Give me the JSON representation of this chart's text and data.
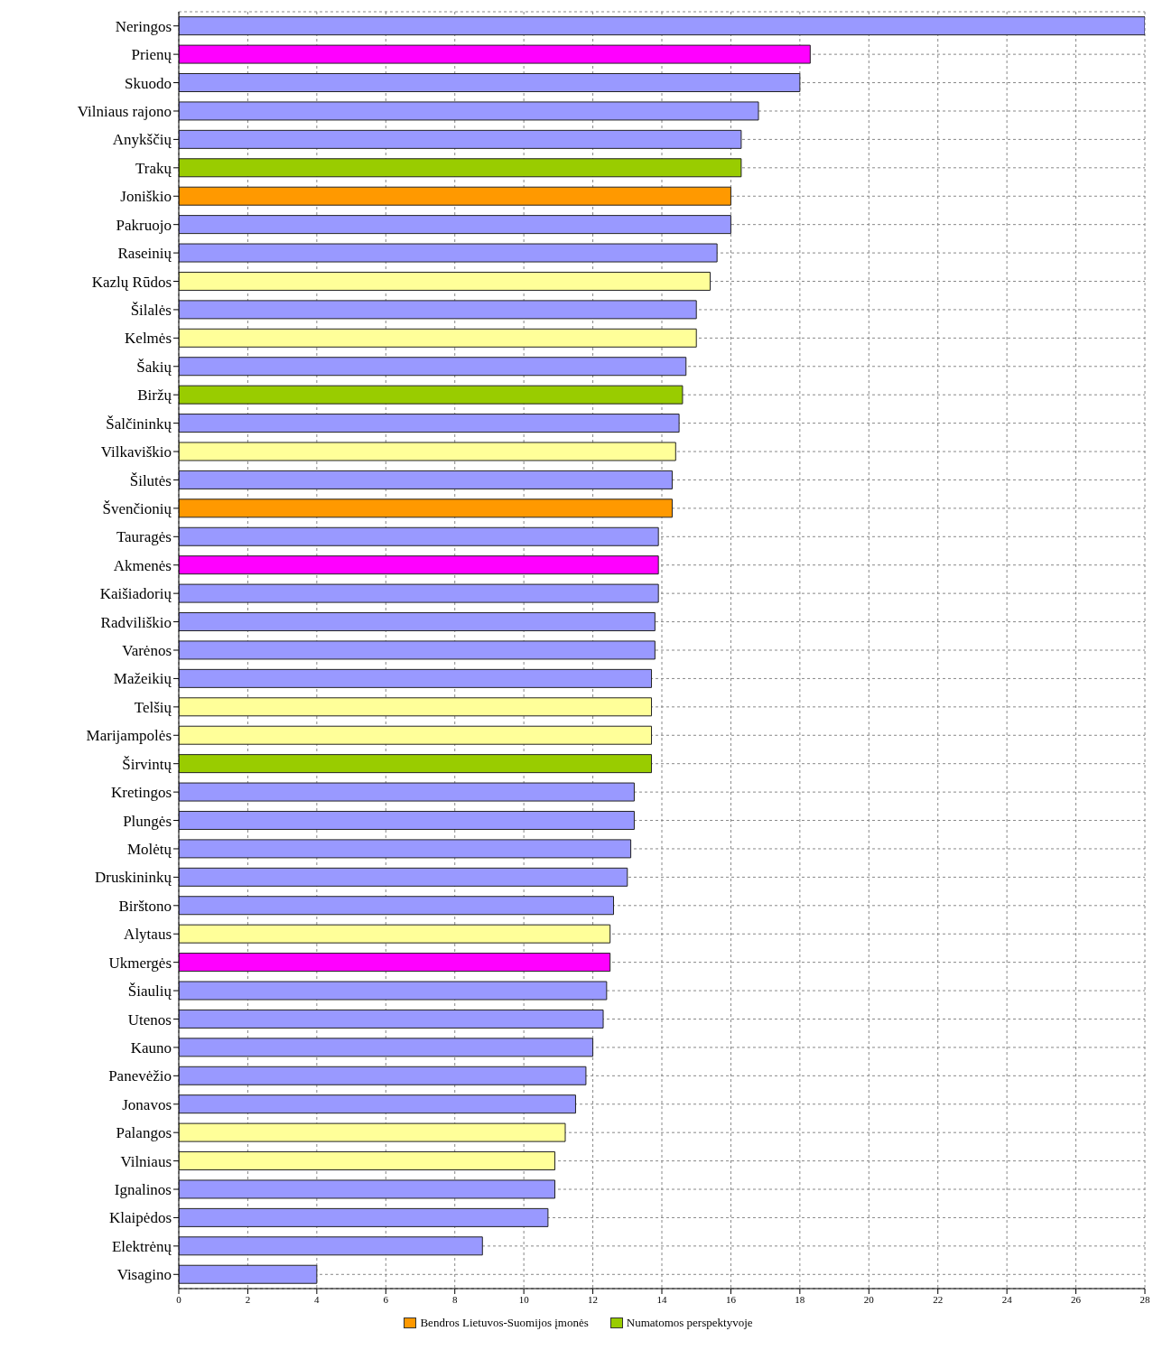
{
  "chart_data": {
    "type": "bar",
    "orientation": "horizontal",
    "stacked": true,
    "categories": [
      "Neringos",
      "Prienų",
      "Skuodo",
      "Vilniaus rajono",
      "Anykščių",
      "Trakų",
      "Joniškio",
      "Pakruojo",
      "Raseinių",
      "Kazlų Rūdos",
      "Šilalės",
      "Kelmės",
      "Šakių",
      "Biržų",
      "Šalčininkų",
      "Vilkaviškio",
      "Šilutės",
      "Švenčionių",
      "Tauragės",
      "Akmenės",
      "Kaišiadorių",
      "Radviliškio",
      "Varėnos",
      "Mažeikių",
      "Telšių",
      "Marijampolės",
      "Širvintų",
      "Kretingos",
      "Plungės",
      "Molėtų",
      "Druskininkų",
      "Birštono",
      "Alytaus",
      "Ukmergės",
      "Šiaulių",
      "Utenos",
      "Kauno",
      "Panevėžio",
      "Jonavos",
      "Palangos",
      "Vilniaus",
      "Ignalinos",
      "Klaipėdos",
      "Elektrėnų",
      "Visagino"
    ],
    "series": [
      {
        "color": "#9999ff",
        "values": [
          28,
          null,
          18.0,
          16.8,
          16.3,
          null,
          null,
          16.0,
          15.6,
          null,
          15.0,
          null,
          14.7,
          null,
          14.5,
          null,
          14.3,
          null,
          13.9,
          null,
          13.9,
          13.8,
          13.8,
          13.7,
          null,
          null,
          null,
          13.2,
          13.2,
          13.1,
          13.0,
          12.6,
          null,
          null,
          12.4,
          12.3,
          12.0,
          11.8,
          11.5,
          null,
          null,
          10.9,
          10.7,
          8.8,
          4.0
        ]
      },
      {
        "color": "#ffff99",
        "values": [
          null,
          null,
          null,
          null,
          null,
          null,
          null,
          null,
          null,
          15.4,
          null,
          15.0,
          null,
          null,
          null,
          14.4,
          null,
          null,
          null,
          null,
          null,
          null,
          null,
          null,
          13.7,
          13.7,
          null,
          null,
          null,
          null,
          null,
          null,
          12.5,
          null,
          null,
          null,
          null,
          null,
          null,
          11.2,
          10.9,
          null,
          null,
          null,
          null
        ]
      },
      {
        "color": "#ff00ff",
        "values": [
          null,
          18.3,
          null,
          null,
          null,
          null,
          null,
          null,
          null,
          null,
          null,
          null,
          null,
          null,
          null,
          null,
          null,
          null,
          null,
          13.9,
          null,
          null,
          null,
          null,
          null,
          null,
          null,
          null,
          null,
          null,
          null,
          null,
          null,
          12.5,
          null,
          null,
          null,
          null,
          null,
          null,
          null,
          null,
          null,
          null,
          null
        ]
      },
      {
        "name": "Bendros Lietuvos-Suomijos įmonės",
        "color": "#ff9900",
        "values": [
          null,
          null,
          null,
          null,
          null,
          null,
          16.0,
          null,
          null,
          null,
          null,
          null,
          null,
          null,
          null,
          null,
          null,
          14.3,
          null,
          null,
          null,
          null,
          null,
          null,
          null,
          null,
          null,
          null,
          null,
          null,
          null,
          null,
          null,
          null,
          null,
          null,
          null,
          null,
          null,
          null,
          null,
          null,
          null,
          null,
          null
        ]
      },
      {
        "name": "Numatomos perspektyvoje",
        "color": "#99cc00",
        "values": [
          null,
          null,
          null,
          null,
          null,
          16.3,
          null,
          null,
          null,
          null,
          null,
          null,
          null,
          14.6,
          null,
          null,
          null,
          null,
          null,
          null,
          null,
          null,
          null,
          null,
          null,
          null,
          13.7,
          null,
          null,
          null,
          null,
          null,
          null,
          null,
          null,
          null,
          null,
          null,
          null,
          null,
          null,
          null,
          null,
          null,
          null
        ]
      }
    ],
    "xlim": [
      0,
      28
    ],
    "xticks": [
      0,
      2,
      4,
      6,
      8,
      10,
      12,
      14,
      16,
      18,
      20,
      22,
      24,
      26,
      28
    ],
    "grid": true,
    "legend": "bottom"
  }
}
